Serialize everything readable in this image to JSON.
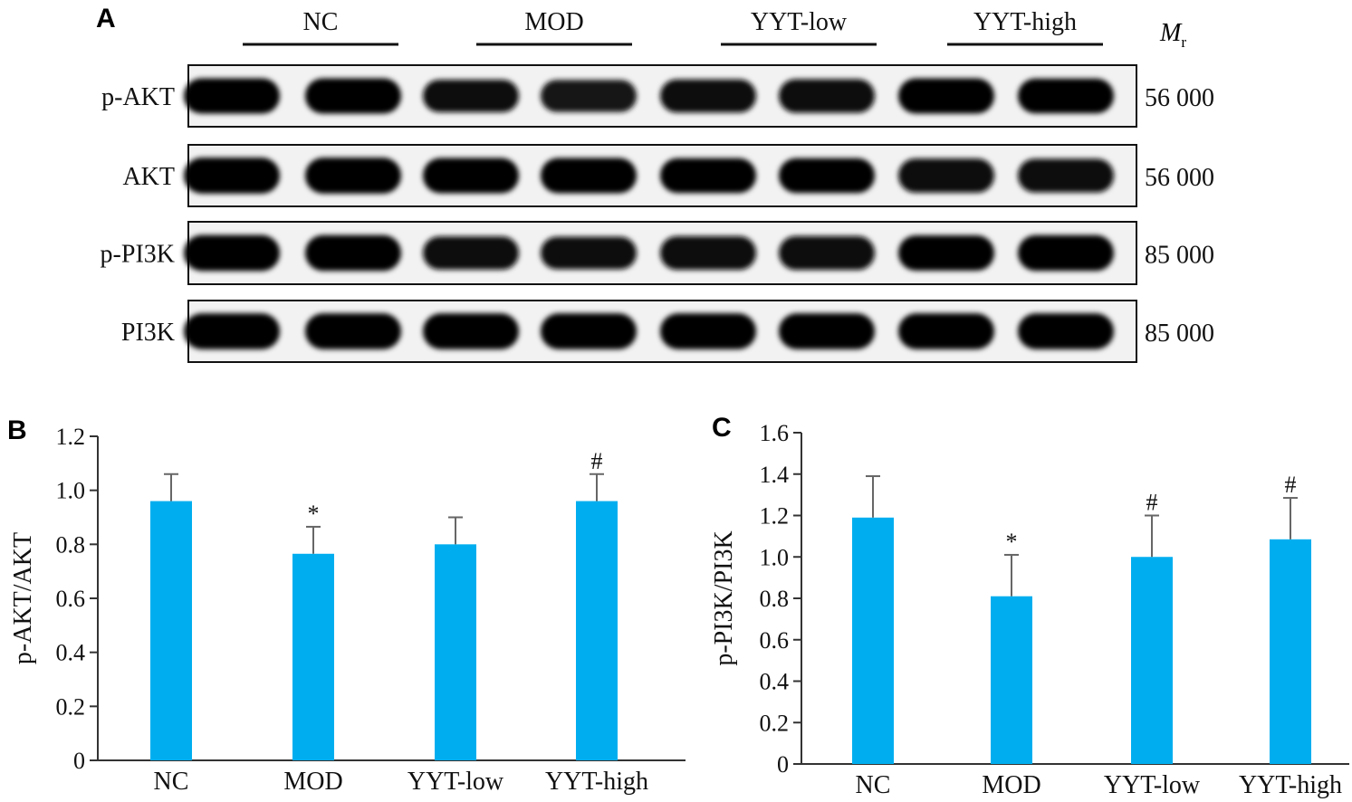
{
  "panel_labels": {
    "a": "A",
    "b": "B",
    "c": "C"
  },
  "blot": {
    "groups": [
      "NC",
      "MOD",
      "YYT-low",
      "YYT-high"
    ],
    "mr_label": "M",
    "mr_sub": "r",
    "rows": [
      {
        "label": "p-AKT",
        "mr": "56 000",
        "band_intensity": [
          0.95,
          0.95,
          0.78,
          0.75,
          0.82,
          0.85,
          0.95,
          0.92
        ]
      },
      {
        "label": "AKT",
        "mr": "56 000",
        "band_intensity": [
          0.98,
          0.98,
          0.95,
          0.95,
          0.92,
          0.92,
          0.88,
          0.85
        ]
      },
      {
        "label": "p-PI3K",
        "mr": "85 000",
        "band_intensity": [
          0.98,
          0.97,
          0.82,
          0.78,
          0.85,
          0.86,
          0.95,
          0.97
        ]
      },
      {
        "label": "PI3K",
        "mr": "85 000",
        "band_intensity": [
          0.98,
          0.98,
          0.98,
          0.98,
          0.98,
          0.98,
          0.98,
          0.98
        ]
      }
    ]
  },
  "bar_color": "#00AEEF",
  "chart_data": [
    {
      "type": "bar",
      "categories": [
        "NC",
        "MOD",
        "YYT-low",
        "YYT-high"
      ],
      "values": [
        0.96,
        0.765,
        0.8,
        0.96
      ],
      "errors": [
        0.1,
        0.1,
        0.1,
        0.1
      ],
      "annotations": [
        "",
        "*",
        "",
        "#"
      ],
      "ylabel": "p-AKT/AKT",
      "ylim": [
        0,
        1.2
      ],
      "yticks": [
        "0",
        "0.2",
        "0.4",
        "0.6",
        "0.8",
        "1.0",
        "1.2"
      ]
    },
    {
      "type": "bar",
      "categories": [
        "NC",
        "MOD",
        "YYT-low",
        "YYT-high"
      ],
      "values": [
        1.19,
        0.81,
        1.0,
        1.085
      ],
      "errors": [
        0.2,
        0.2,
        0.2,
        0.2
      ],
      "annotations": [
        "",
        "*",
        "#",
        "#"
      ],
      "ylabel": "p-PI3K/PI3K",
      "ylim": [
        0,
        1.6
      ],
      "yticks": [
        "0",
        "0.2",
        "0.4",
        "0.6",
        "0.8",
        "1.0",
        "1.2",
        "1.4",
        "1.6"
      ]
    }
  ]
}
